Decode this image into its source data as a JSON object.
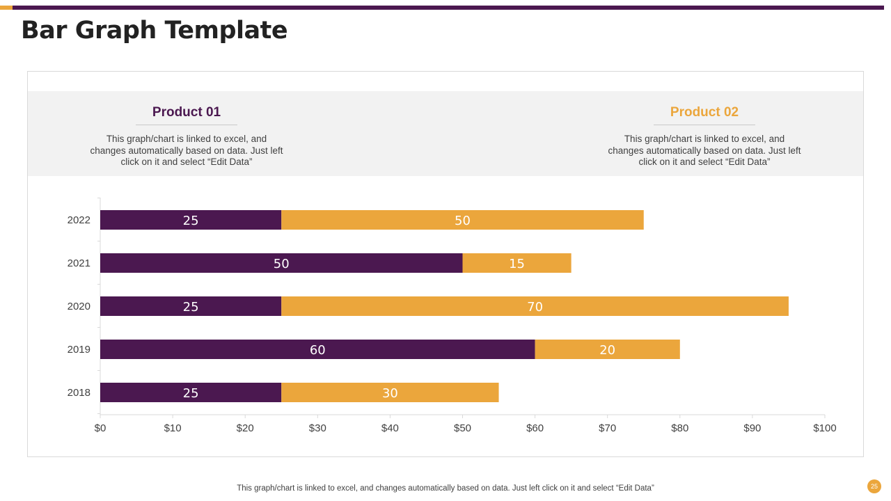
{
  "slide": {
    "title": "Bar Graph Template",
    "footnote": "This graph/chart is linked to excel,  and changes automatically based on data. Just left click on it and select “Edit Data”",
    "page_number": "25"
  },
  "colors": {
    "purple": "#4b1850",
    "gold": "#eba63c",
    "text": "#404040"
  },
  "legend": [
    {
      "title": "Product 01",
      "description": "This graph/chart is linked to excel,  and changes automatically based on data. Just left click  on it and select “Edit Data”"
    },
    {
      "title": "Product 02",
      "description": "This graph/chart is linked to excel,  and changes automatically based on data. Just left click  on it and select “Edit Data”"
    }
  ],
  "chart_data": {
    "type": "bar",
    "orientation": "horizontal",
    "stacked": true,
    "categories": [
      "2022",
      "2021",
      "2020",
      "2019",
      "2018"
    ],
    "series": [
      {
        "name": "Product 01",
        "values": [
          25,
          50,
          25,
          60,
          25
        ]
      },
      {
        "name": "Product 02",
        "values": [
          50,
          15,
          70,
          20,
          30
        ]
      }
    ],
    "xlim": [
      0,
      100
    ],
    "xticks": [
      0,
      10,
      20,
      30,
      40,
      50,
      60,
      70,
      80,
      90,
      100
    ],
    "xtick_labels": [
      "$0",
      "$10",
      "$20",
      "$30",
      "$40",
      "$50",
      "$60",
      "$70",
      "$80",
      "$90",
      "$100"
    ],
    "data_labels": true,
    "grid": false,
    "legend_position": "top"
  }
}
